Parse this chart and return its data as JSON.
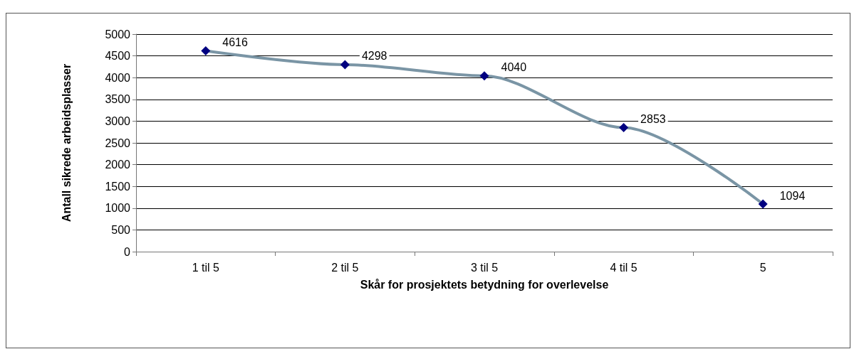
{
  "chart_data": {
    "type": "line",
    "xlabel": "Skår for prosjektets betydning for overlevelse",
    "ylabel": "Antall sikrede arbeidsplasser",
    "categories": [
      "1 til 5",
      "2 til 5",
      "3 til 5",
      "4 til 5",
      "5"
    ],
    "series": [
      {
        "color": "#7a95a5",
        "colors": [
          "#000080",
          "#000080",
          "#000080",
          "#000080",
          "#000080"
        ],
        "values": [
          4616,
          4298,
          4040,
          2853,
          1094
        ]
      }
    ],
    "ylim": [
      0,
      5000
    ],
    "yticks": [
      0,
      500,
      1000,
      1500,
      2000,
      2500,
      3000,
      3500,
      4000,
      4500,
      5000
    ],
    "grid": "y",
    "marker": "diamond",
    "line_style": "solid",
    "data_labels": true
  }
}
